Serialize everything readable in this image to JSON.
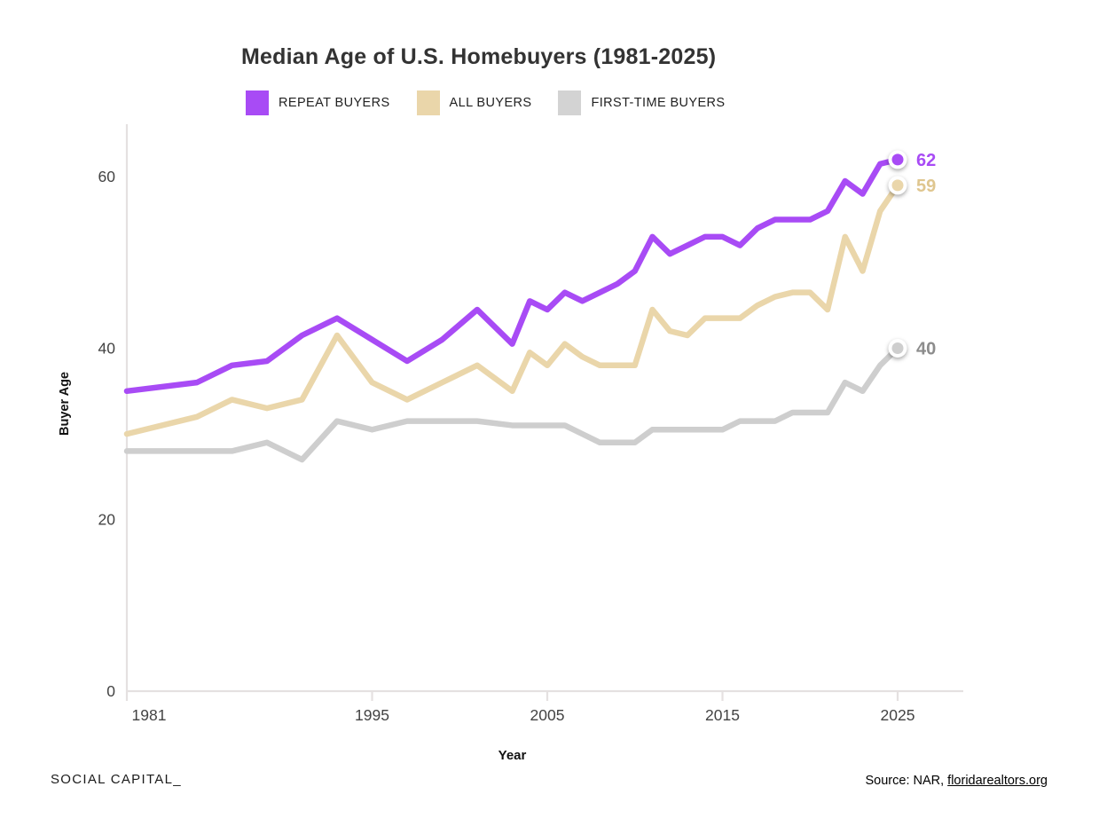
{
  "header": {
    "title": "Median Age of U.S. Homebuyers (1981-2025)"
  },
  "legend": {
    "items": [
      {
        "label": "REPEAT BUYERS",
        "color": "#A84BF5"
      },
      {
        "label": "ALL BUYERS",
        "color": "#EAD6AA"
      },
      {
        "label": "FIRST-TIME BUYERS",
        "color": "#D3D3D3"
      }
    ]
  },
  "chart_data": {
    "type": "line",
    "title": "Median Age of U.S. Homebuyers (1981-2025)",
    "xlabel": "Year",
    "ylabel": "Buyer Age",
    "x": [
      1981,
      1985,
      1987,
      1989,
      1991,
      1993,
      1995,
      1997,
      1999,
      2001,
      2003,
      2004,
      2005,
      2006,
      2007,
      2008,
      2009,
      2010,
      2011,
      2012,
      2013,
      2014,
      2015,
      2016,
      2017,
      2018,
      2019,
      2020,
      2021,
      2022,
      2023,
      2024,
      2025
    ],
    "series": [
      {
        "name": "FIRST-TIME BUYERS",
        "color": "#CECECE",
        "label_color": "#8C8C8C",
        "end_label": "40",
        "values": [
          28,
          28,
          28,
          29,
          27,
          31.5,
          30.5,
          31.5,
          31.5,
          31.5,
          31,
          31,
          31,
          31,
          30,
          29,
          29,
          29,
          30.5,
          30.5,
          30.5,
          30.5,
          30.5,
          31.5,
          31.5,
          31.5,
          32.5,
          32.5,
          32.5,
          36,
          35,
          38,
          40
        ]
      },
      {
        "name": "ALL BUYERS",
        "color": "#EAD6AA",
        "label_color": "#DFC68F",
        "end_label": "59",
        "values": [
          30,
          32,
          34,
          33,
          34,
          41.5,
          36,
          34,
          36,
          38,
          35,
          39.5,
          38,
          40.5,
          39,
          38,
          38,
          38,
          44.5,
          42,
          41.5,
          43.5,
          43.5,
          43.5,
          45,
          46,
          46.5,
          46.5,
          44.5,
          53,
          49,
          56,
          59
        ]
      },
      {
        "name": "REPEAT BUYERS",
        "color": "#A84BF5",
        "label_color": "#A84BF5",
        "end_label": "62",
        "values": [
          35,
          36,
          38,
          38.5,
          41.5,
          43.5,
          41,
          38.5,
          41,
          44.5,
          40.5,
          45.5,
          44.5,
          46.5,
          45.5,
          46.5,
          47.5,
          49,
          53,
          51,
          52,
          53,
          53,
          52,
          54,
          55,
          55,
          55,
          56,
          59.5,
          58,
          61.5,
          62
        ]
      }
    ],
    "x_ticks": [
      1981,
      1995,
      2005,
      2015,
      2025
    ],
    "y_ticks": [
      0,
      20,
      40,
      60
    ],
    "xlim": [
      1981,
      2025
    ],
    "ylim": [
      0,
      66
    ],
    "grid": false,
    "legend_position": "top"
  },
  "footer": {
    "brand": "SOCIAL CAPITAL_",
    "source_prefix": "Source: NAR, ",
    "source_link": "floridarealtors.org"
  }
}
